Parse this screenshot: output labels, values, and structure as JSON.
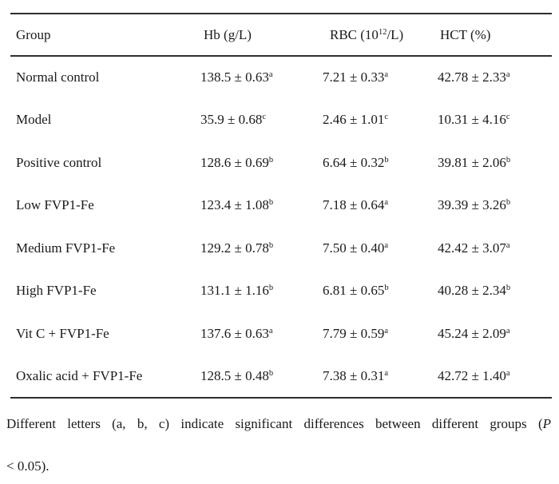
{
  "table": {
    "headers": {
      "group": "Group",
      "hb": "Hb (g/L)",
      "rbc_pre": "RBC (10",
      "rbc_sup": "12",
      "rbc_post": "/L)",
      "hct": "HCT (%)"
    },
    "rows": [
      {
        "group": "Normal control",
        "hb": {
          "v": "138.5 ± 0.63",
          "s": "a"
        },
        "rbc": {
          "v": "7.21 ± 0.33",
          "s": "a"
        },
        "hct": {
          "v": "42.78 ± 2.33",
          "s": "a"
        }
      },
      {
        "group": "Model",
        "hb": {
          "v": "35.9 ± 0.68",
          "s": "c"
        },
        "rbc": {
          "v": "2.46 ± 1.01",
          "s": "c"
        },
        "hct": {
          "v": "10.31 ± 4.16",
          "s": "c"
        }
      },
      {
        "group": "Positive control",
        "hb": {
          "v": "128.6 ± 0.69",
          "s": "b"
        },
        "rbc": {
          "v": "6.64 ± 0.32",
          "s": "b"
        },
        "hct": {
          "v": "39.81 ± 2.06",
          "s": "b"
        }
      },
      {
        "group": "Low FVP1-Fe",
        "hb": {
          "v": "123.4 ± 1.08",
          "s": "b"
        },
        "rbc": {
          "v": "7.18 ± 0.64",
          "s": "a"
        },
        "hct": {
          "v": "39.39 ± 3.26",
          "s": "b"
        }
      },
      {
        "group": "Medium FVP1-Fe",
        "hb": {
          "v": "129.2 ± 0.78",
          "s": "b"
        },
        "rbc": {
          "v": "7.50 ± 0.40",
          "s": "a"
        },
        "hct": {
          "v": "42.42 ± 3.07",
          "s": "a"
        }
      },
      {
        "group": "High FVP1-Fe",
        "hb": {
          "v": "131.1 ± 1.16",
          "s": "b"
        },
        "rbc": {
          "v": "6.81 ± 0.65",
          "s": "b"
        },
        "hct": {
          "v": "40.28 ± 2.34",
          "s": "b"
        }
      },
      {
        "group": "Vit C + FVP1-Fe",
        "hb": {
          "v": "137.6 ± 0.63",
          "s": "a"
        },
        "rbc": {
          "v": "7.79 ± 0.59",
          "s": "a"
        },
        "hct": {
          "v": "45.24 ± 2.09",
          "s": "a"
        }
      },
      {
        "group": "Oxalic acid + FVP1-Fe",
        "hb": {
          "v": "128.5 ± 0.48",
          "s": "b"
        },
        "rbc": {
          "v": "7.38 ± 0.31",
          "s": "a"
        },
        "hct": {
          "v": "42.72 ± 1.40",
          "s": "a"
        }
      }
    ]
  },
  "footnote": {
    "line1_pre": "Different letters (a, b, c) indicate significant differences between different groups (",
    "line1_italic": "P",
    "line2": "< 0.05)."
  },
  "colors": {
    "rule": "#2e2e2e",
    "text": "#1a1a1a",
    "background": "#ffffff"
  }
}
